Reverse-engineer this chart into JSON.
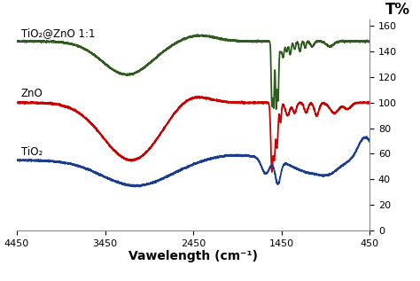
{
  "title_right": "T%",
  "xlabel": "Vawelength (cm⁻¹)",
  "xlim": [
    4450,
    450
  ],
  "ylim": [
    0,
    165
  ],
  "yticks": [
    0,
    20,
    40,
    60,
    80,
    100,
    120,
    140,
    160
  ],
  "xticks": [
    4450,
    3450,
    2450,
    1450,
    450
  ],
  "label_tio2_zno": "TiO₂@ZnO 1:1",
  "label_zno": "ZnO",
  "label_tio2": "TiO₂",
  "color_green": "#2d5c1e",
  "color_red": "#cc0000",
  "color_blue": "#1a3d8f",
  "background": "#ffffff"
}
